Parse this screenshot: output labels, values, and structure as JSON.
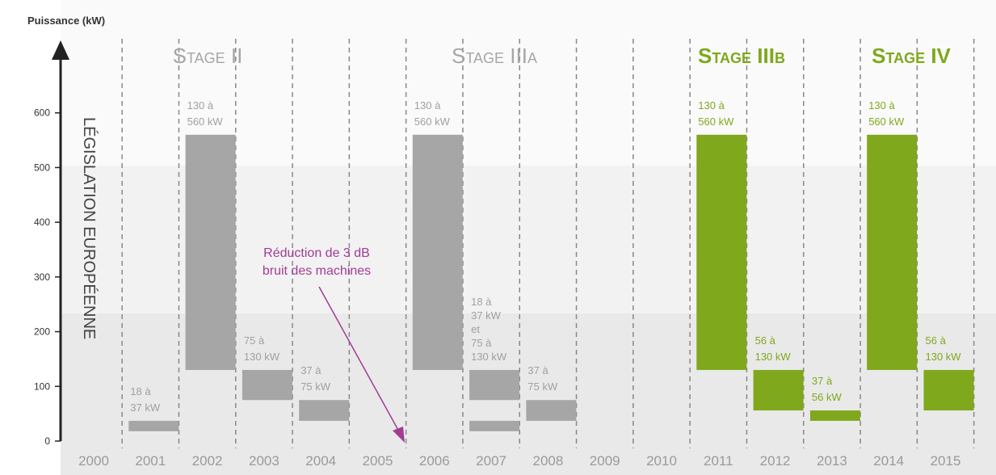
{
  "chart_data": {
    "type": "range-bar",
    "y_axis_title": "Puissance (kW)",
    "side_label": "LÉGISLATION EUROPÉENNE",
    "categories": [
      "2000",
      "2001",
      "2002",
      "2003",
      "2004",
      "2005",
      "2006",
      "2007",
      "2008",
      "2009",
      "2010",
      "2011",
      "2012",
      "2013",
      "2014",
      "2015"
    ],
    "ylim": [
      0,
      700
    ],
    "yticks": [
      0,
      100,
      200,
      300,
      400,
      500,
      600
    ],
    "bars": [
      {
        "x": "2001",
        "low": 18,
        "high": 37,
        "color": "#a6a6a6"
      },
      {
        "x": "2002",
        "low": 130,
        "high": 560,
        "color": "#a6a6a6"
      },
      {
        "x": "2003",
        "low": 75,
        "high": 130,
        "color": "#a6a6a6"
      },
      {
        "x": "2004",
        "low": 37,
        "high": 75,
        "color": "#a6a6a6"
      },
      {
        "x": "2006",
        "low": 130,
        "high": 560,
        "color": "#a6a6a6"
      },
      {
        "x": "2007",
        "low": 18,
        "high": 37,
        "color": "#a6a6a6"
      },
      {
        "x": "2007",
        "low": 75,
        "high": 130,
        "color": "#a6a6a6"
      },
      {
        "x": "2008",
        "low": 37,
        "high": 75,
        "color": "#a6a6a6"
      },
      {
        "x": "2011",
        "low": 130,
        "high": 560,
        "color": "#7fa81d"
      },
      {
        "x": "2012",
        "low": 56,
        "high": 130,
        "color": "#7fa81d"
      },
      {
        "x": "2013",
        "low": 37,
        "high": 56,
        "color": "#7fa81d"
      },
      {
        "x": "2014",
        "low": 130,
        "high": 560,
        "color": "#7fa81d"
      },
      {
        "x": "2015",
        "low": 56,
        "high": 130,
        "color": "#7fa81d"
      }
    ],
    "labels": [
      {
        "x": "2001",
        "lines": [
          "18 à",
          "37 kW"
        ],
        "color": "#a0a0a0"
      },
      {
        "x": "2002",
        "lines": [
          "130 à",
          "560 kW"
        ],
        "color": "#a0a0a0"
      },
      {
        "x": "2003",
        "lines": [
          "75 à",
          "130 kW"
        ],
        "color": "#a0a0a0"
      },
      {
        "x": "2004",
        "lines": [
          "37 à",
          "75 kW"
        ],
        "color": "#a0a0a0"
      },
      {
        "x": "2006",
        "lines": [
          "130 à",
          "560 kW"
        ],
        "color": "#a0a0a0"
      },
      {
        "x": "2007",
        "lines": [
          "18 à",
          "37 kW",
          "et",
          "75 à",
          "130 kW"
        ],
        "color": "#a0a0a0"
      },
      {
        "x": "2008",
        "lines": [
          "37 à",
          "75 kW"
        ],
        "color": "#a0a0a0"
      },
      {
        "x": "2011",
        "lines": [
          "130 à",
          "560 kW"
        ],
        "color": "#7fa81d"
      },
      {
        "x": "2012",
        "lines": [
          "56 à",
          "130 kW"
        ],
        "color": "#7fa81d"
      },
      {
        "x": "2013",
        "lines": [
          "37 à",
          "56 kW"
        ],
        "color": "#7fa81d"
      },
      {
        "x": "2014",
        "lines": [
          "130 à",
          "560 kW"
        ],
        "color": "#7fa81d"
      },
      {
        "x": "2015",
        "lines": [
          "56 à",
          "130 kW"
        ],
        "color": "#7fa81d"
      }
    ],
    "stages": [
      {
        "text": "Stage II",
        "color": "#a6a6a6"
      },
      {
        "text": "Stage IIIa",
        "color": "#a6a6a6"
      },
      {
        "text": "Stage IIIb",
        "color": "#7fa81d"
      },
      {
        "text": "Stage IV",
        "color": "#7fa81d"
      }
    ],
    "annotation": {
      "lines": [
        "Réduction de 3 dB",
        "bruit des machines"
      ],
      "color": "#a03c96"
    }
  }
}
